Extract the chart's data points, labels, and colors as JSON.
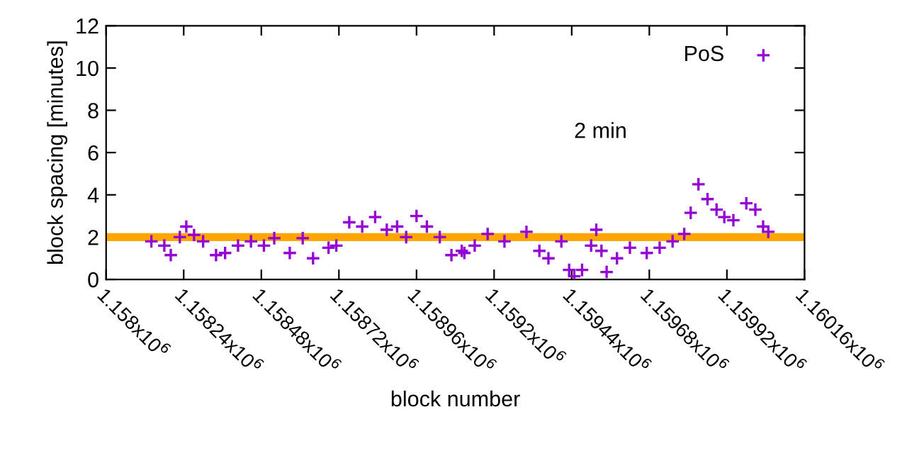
{
  "chart_data": {
    "type": "scatter",
    "xlabel": "block number",
    "ylabel": "block spacing [minutes]",
    "xlim": [
      1158000,
      1160160
    ],
    "ylim": [
      0,
      12
    ],
    "xticks": [
      {
        "value": 1158000,
        "label": "1.158x10$^{6}$"
      },
      {
        "value": 1158240,
        "label": "1.15824x10$^{6}$"
      },
      {
        "value": 1158480,
        "label": "1.15848x10$^{6}$"
      },
      {
        "value": 1158720,
        "label": "1.15872x10$^{6}$"
      },
      {
        "value": 1158960,
        "label": "1.15896x10$^{6}$"
      },
      {
        "value": 1159200,
        "label": "1.1592x10$^{6}$"
      },
      {
        "value": 1159440,
        "label": "1.15944x10$^{6}$"
      },
      {
        "value": 1159680,
        "label": "1.15968x10$^{6}$"
      },
      {
        "value": 1159920,
        "label": "1.15992x10$^{6}$"
      },
      {
        "value": 1160160,
        "label": "1.16016x10$^{6}$"
      }
    ],
    "yticks": [
      0,
      2,
      4,
      6,
      8,
      10,
      12
    ],
    "marker": "cross",
    "legend": "top right",
    "grid": false,
    "ref_lines": [
      {
        "axis": "y",
        "value": 2,
        "color": "#ffa500"
      }
    ],
    "annotations": [
      "2 min"
    ],
    "series": [
      {
        "name": "PoS",
        "color": "#9400d3",
        "x": [
          1158140,
          1158180,
          1158200,
          1158228,
          1158248,
          1158272,
          1158300,
          1158340,
          1158368,
          1158408,
          1158448,
          1158488,
          1158520,
          1158568,
          1158608,
          1158640,
          1158688,
          1158712,
          1158752,
          1158792,
          1158832,
          1158868,
          1158900,
          1158928,
          1158960,
          1158992,
          1159032,
          1159068,
          1159108,
          1159100,
          1159140,
          1159180,
          1159232,
          1159300,
          1159340,
          1159368,
          1159408,
          1159432,
          1159448,
          1159472,
          1159500,
          1159516,
          1159532,
          1159548,
          1159580,
          1159620,
          1159672,
          1159712,
          1159752,
          1159788,
          1159808,
          1159832,
          1159860,
          1159888,
          1159912,
          1159940,
          1159980,
          1160008,
          1160032,
          1160048
        ],
        "values": [
          1.8,
          1.6,
          1.15,
          2.0,
          2.5,
          2.1,
          1.8,
          1.15,
          1.25,
          1.6,
          1.8,
          1.6,
          1.95,
          1.25,
          1.95,
          1.0,
          1.5,
          1.6,
          2.7,
          2.5,
          2.95,
          2.35,
          2.5,
          2.0,
          3.0,
          2.5,
          2.0,
          1.15,
          1.25,
          1.35,
          1.6,
          2.15,
          1.8,
          2.25,
          1.35,
          1.0,
          1.8,
          0.45,
          0.15,
          0.45,
          1.6,
          2.35,
          1.35,
          0.35,
          1.0,
          1.5,
          1.25,
          1.5,
          1.8,
          2.15,
          3.15,
          4.5,
          3.8,
          3.3,
          2.95,
          2.8,
          3.6,
          3.3,
          2.5,
          2.25
        ]
      }
    ]
  }
}
